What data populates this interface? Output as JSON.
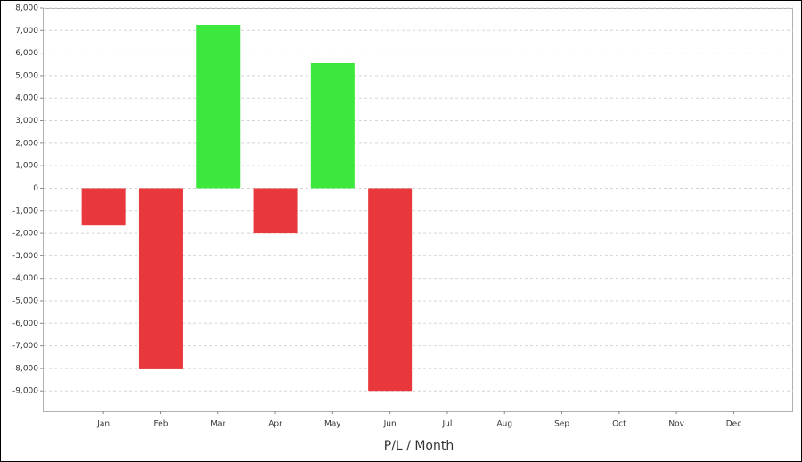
{
  "chart_data": {
    "type": "bar",
    "x_label": "P/L / Month",
    "categories": [
      "Jan",
      "Feb",
      "Mar",
      "Apr",
      "May",
      "Jun",
      "Jul",
      "Aug",
      "Sep",
      "Oct",
      "Nov",
      "Dec"
    ],
    "values": [
      -1650,
      -8000,
      7250,
      -2000,
      5550,
      -9000,
      null,
      null,
      null,
      null,
      null,
      null
    ],
    "positive_color": "#3ce83c",
    "negative_color": "#e8383c",
    "ylim": [
      -9900,
      8000
    ],
    "yticks": [
      {
        "value": -9000,
        "label": "-9,000"
      },
      {
        "value": -8000,
        "label": "-8,000"
      },
      {
        "value": -7000,
        "label": "-7,000"
      },
      {
        "value": -6000,
        "label": "-6,000"
      },
      {
        "value": -5000,
        "label": "-5,000"
      },
      {
        "value": -4000,
        "label": "-4,000"
      },
      {
        "value": -3000,
        "label": "-3,000"
      },
      {
        "value": -2000,
        "label": "-2,000"
      },
      {
        "value": -1000,
        "label": "-1,000"
      },
      0,
      {
        "value": 1000,
        "label": "1,000"
      },
      {
        "value": 2000,
        "label": "2,000"
      },
      {
        "value": 3000,
        "label": "3,000"
      },
      {
        "value": 4000,
        "label": "4,000"
      },
      {
        "value": 5000,
        "label": "5,000"
      },
      {
        "value": 6000,
        "label": "6,000"
      },
      {
        "value": 7000,
        "label": "7,000"
      },
      {
        "value": {
          "value": 8000,
          "label": "8,000"
        }
      }
    ],
    "grid": true
  }
}
